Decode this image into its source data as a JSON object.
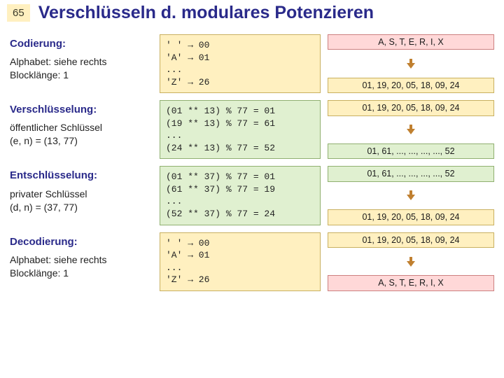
{
  "slide": {
    "number": "65",
    "title": "Verschlüsseln d. modulares Potenzieren"
  },
  "colors": {
    "yellow_bg": "#fff0c0",
    "yellow_border": "#c8b060",
    "pink_bg": "#ffd8d8",
    "pink_border": "#cc8080",
    "green_bg": "#e0f0d0",
    "green_border": "#90b070",
    "arrow": "#c08030"
  },
  "sections": [
    {
      "heading": "Codierung:",
      "body": "Alphabet: siehe rechts\nBlocklänge: 1",
      "mid_box": "yellow",
      "mid_text": "' ' → 00\n'A' → 01\n...\n'Z' → 26",
      "right": [
        {
          "kind": "pill",
          "color": "pink",
          "text": "A, S, T, E, R, I, X"
        },
        {
          "kind": "arrow"
        },
        {
          "kind": "pill",
          "color": "yellow",
          "text": "01, 19, 20, 05, 18, 09, 24"
        }
      ]
    },
    {
      "heading": "Verschlüsselung:",
      "body": "öffentlicher Schlüssel\n(e, n) = (13, 77)",
      "mid_box": "green",
      "mid_text": "(01 ** 13) % 77 = 01\n(19 ** 13) % 77 = 61\n...\n(24 ** 13) % 77 = 52",
      "right": [
        {
          "kind": "pill",
          "color": "yellow",
          "text": "01, 19, 20, 05, 18, 09, 24"
        },
        {
          "kind": "arrow"
        },
        {
          "kind": "pill",
          "color": "green",
          "text": "01, 61, ..., ..., ..., ..., 52"
        }
      ]
    },
    {
      "heading": "Entschlüsselung:",
      "body": "privater Schlüssel\n(d, n) = (37, 77)",
      "mid_box": "green",
      "mid_text": "(01 ** 37) % 77 = 01\n(61 ** 37) % 77 = 19\n...\n(52 ** 37) % 77 = 24",
      "right": [
        {
          "kind": "pill",
          "color": "green",
          "text": "01, 61, ..., ..., ..., ..., 52"
        },
        {
          "kind": "arrow"
        },
        {
          "kind": "pill",
          "color": "yellow",
          "text": "01, 19, 20, 05, 18, 09, 24"
        }
      ]
    },
    {
      "heading": "Decodierung:",
      "body": "Alphabet: siehe rechts\nBlocklänge: 1",
      "mid_box": "yellow",
      "mid_text": "' ' → 00\n'A' → 01\n...\n'Z' → 26",
      "right": [
        {
          "kind": "pill",
          "color": "yellow",
          "text": "01, 19, 20, 05, 18, 09, 24"
        },
        {
          "kind": "arrow"
        },
        {
          "kind": "pill",
          "color": "pink",
          "text": "A, S, T, E, R, I, X"
        }
      ]
    }
  ]
}
